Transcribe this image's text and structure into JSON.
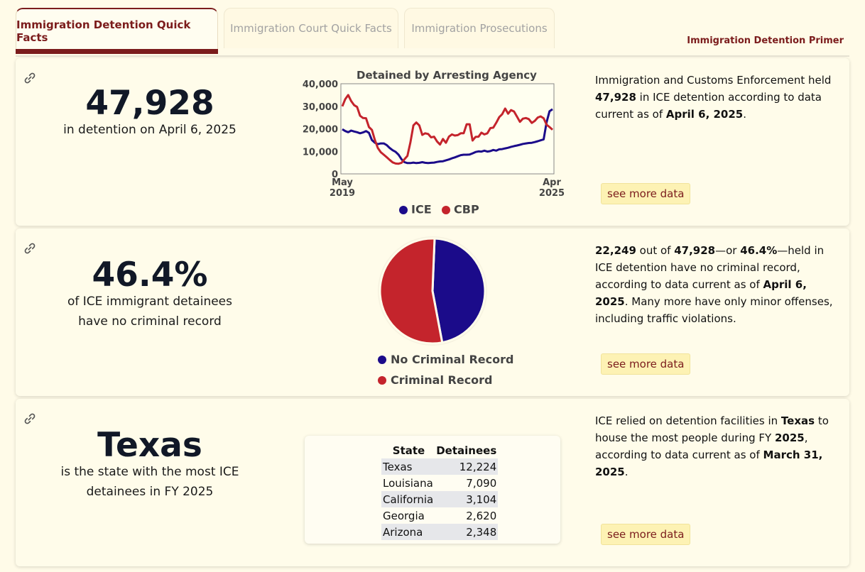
{
  "tabs": [
    {
      "label": "Immigration Detention Quick Facts",
      "active": true
    },
    {
      "label": "Immigration Court Quick Facts",
      "active": false
    },
    {
      "label": "Immigration Prosecutions",
      "active": false
    }
  ],
  "primer_link": "Immigration Detention Primer",
  "card1": {
    "big_number": "47,928",
    "subtitle": "in detention on April 6, 2025",
    "chart_title": "Detained by Arresting Agency",
    "description": {
      "p1": "Immigration and Customs Enforcement held ",
      "b1": "47,928",
      "p2": " in ICE detention according to data current as of ",
      "b2": "April 6, 2025",
      "p3": "."
    },
    "more_label": "see more data"
  },
  "card2": {
    "big_number": "46.4%",
    "subtitle": "of ICE immigrant detainees have no criminal record",
    "description": {
      "b1": "22,249",
      "p1": " out of ",
      "b2": "47,928",
      "p2": "—or ",
      "b3": "46.4%",
      "p3": "—held in ICE detention have no criminal record, according to data current as of ",
      "b4": "April 6, 2025",
      "p4": ". Many more have only minor offenses, including traffic violations."
    },
    "more_label": "see more data"
  },
  "card3": {
    "big_number": "Texas",
    "subtitle": "is the state with the most ICE detainees in FY 2025",
    "description": {
      "p1": "ICE relied on detention facilities in ",
      "b1": "Texas",
      "p2": " to house the most people during FY ",
      "b2": "2025",
      "p3": ", according to data current as of ",
      "b3": "March 31, 2025",
      "p4": "."
    },
    "more_label": "see more data"
  },
  "colors": {
    "ice": "#1b0b8a",
    "cbp": "#c4242c",
    "accent": "#7b1c1c"
  },
  "icons": {
    "permalink": "link-icon"
  },
  "chart_data": [
    {
      "type": "line",
      "title": "Detained by Arresting Agency",
      "x_start_label": "May 2019",
      "x_end_label": "Apr 2025",
      "yticks": [
        "0",
        "10,000",
        "20,000",
        "30,000",
        "40,000"
      ],
      "ylim": [
        0,
        40000
      ],
      "legend": "bottom",
      "series": [
        {
          "name": "ICE",
          "color": "#1b0b8a",
          "values": [
            19800,
            19000,
            18500,
            19200,
            18800,
            18500,
            18000,
            18400,
            19000,
            18200,
            15000,
            13800,
            13200,
            13500,
            13500,
            12800,
            11500,
            10500,
            9800,
            8500,
            6500,
            5200,
            4800,
            4800,
            5000,
            4800,
            4900,
            5200,
            4900,
            4800,
            4900,
            5000,
            5300,
            5500,
            5600,
            6000,
            6400,
            6900,
            7300,
            7800,
            8300,
            8500,
            8500,
            8600,
            9100,
            9700,
            10000,
            9900,
            10300,
            9900,
            10100,
            10600,
            10300,
            10900,
            11000,
            11300,
            11600,
            12000,
            12300,
            12600,
            12900,
            13300,
            13500,
            13700,
            13800,
            14100,
            14500,
            14900,
            15300,
            23000,
            27800,
            28700
          ]
        },
        {
          "name": "CBP",
          "color": "#c4242c",
          "values": [
            30000,
            33200,
            35000,
            32300,
            30500,
            29700,
            25800,
            24800,
            24700,
            20800,
            19500,
            15000,
            11500,
            9600,
            8500,
            7400,
            6200,
            5100,
            4600,
            4500,
            4900,
            6500,
            8000,
            14000,
            21500,
            22800,
            21500,
            17300,
            18000,
            17700,
            16200,
            16500,
            14400,
            13000,
            15500,
            13800,
            16500,
            17500,
            17000,
            17200,
            18000,
            18000,
            22000,
            22000,
            14800,
            16400,
            16500,
            18300,
            17500,
            18000,
            20300,
            20500,
            22700,
            25200,
            26500,
            29000,
            26700,
            28300,
            27700,
            25400,
            23100,
            24500,
            24800,
            24300,
            22600,
            23500,
            25000,
            25500,
            24700,
            21800,
            20800,
            19600
          ]
        }
      ]
    },
    {
      "type": "pie",
      "categories": [
        "No Criminal Record",
        "Criminal Record"
      ],
      "values": [
        46.4,
        53.6
      ],
      "colors": [
        "#1b0b8a",
        "#c4242c"
      ],
      "legend": "bottom"
    },
    {
      "type": "table",
      "columns": [
        "State",
        "Detainees"
      ],
      "rows": [
        {
          "state": "Texas",
          "count": "12,224"
        },
        {
          "state": "Louisiana",
          "count": "7,090"
        },
        {
          "state": "California",
          "count": "3,104"
        },
        {
          "state": "Georgia",
          "count": "2,620"
        },
        {
          "state": "Arizona",
          "count": "2,348"
        }
      ]
    }
  ]
}
